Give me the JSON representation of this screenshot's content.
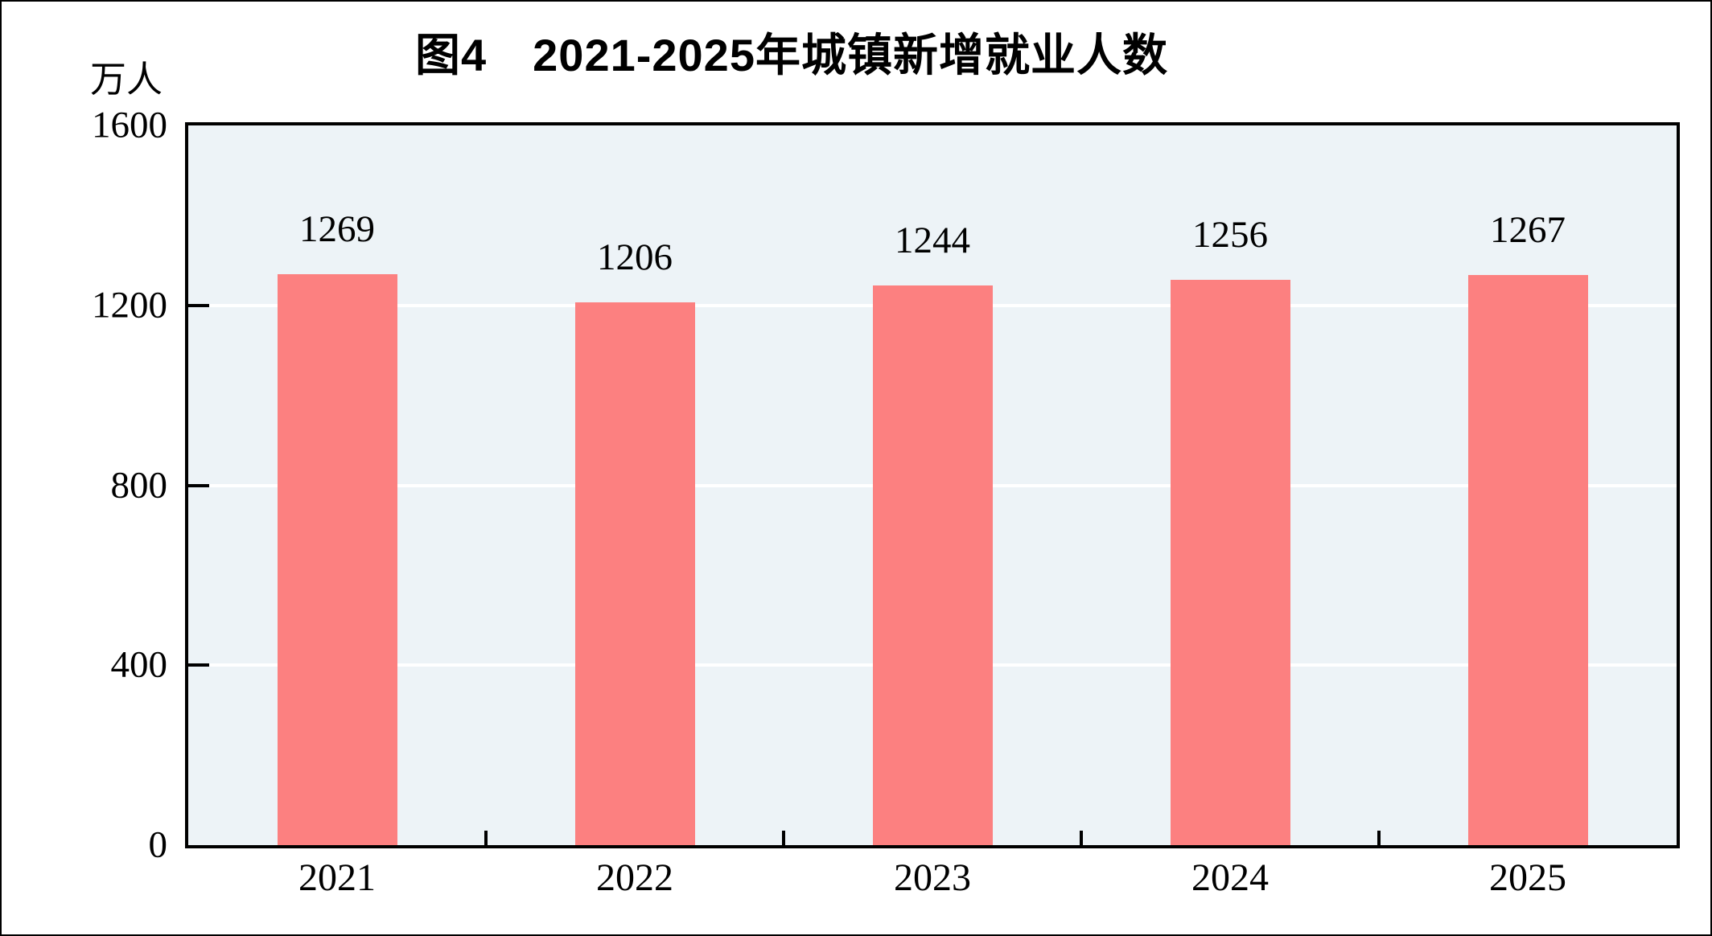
{
  "chart_data": {
    "type": "bar",
    "title": "图4　2021-2025年城镇新增就业人数",
    "ylabel": "万人",
    "xlabel": "",
    "categories": [
      "2021",
      "2022",
      "2023",
      "2024",
      "2025"
    ],
    "values": [
      1269,
      1206,
      1244,
      1256,
      1267
    ],
    "data_labels": [
      "1269",
      "1206",
      "1244",
      "1256",
      "1267"
    ],
    "ylim": [
      0,
      1600
    ],
    "yticks": [
      0,
      400,
      800,
      1200,
      1600
    ],
    "grid": "horizontal-white-lines",
    "tick_direction": "inside",
    "legend_position": "none",
    "colors": {
      "bar": "#FC8080",
      "plot_background": "#EDF3F7",
      "gridline": "#FFFFFF",
      "axis": "#000000",
      "text": "#000000",
      "page_background": "#FFFFFF"
    }
  }
}
